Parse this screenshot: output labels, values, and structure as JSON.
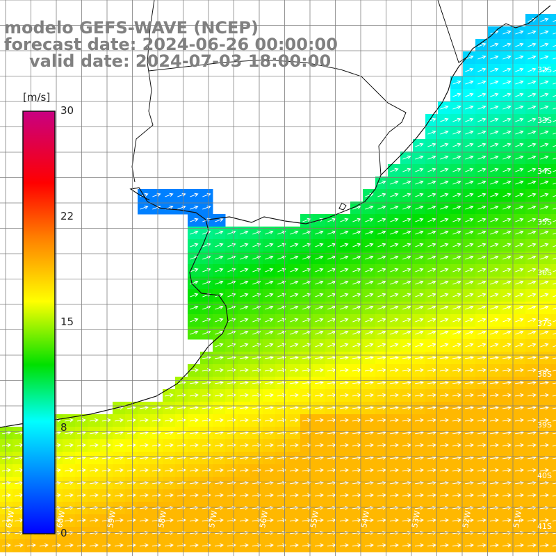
{
  "title": {
    "line1": "modelo GEFS-WAVE (NCEP)",
    "line2": "forecast date: 2024-06-26 00:00:00",
    "line3": "valid date: 2024-07-03 18:00:00"
  },
  "colorbar": {
    "unit": "[m/s]",
    "ticks": [
      "30",
      "22",
      "15",
      "8",
      "0"
    ],
    "stops": [
      "#0000ff",
      "#00ffff",
      "#00ff00",
      "#ffff00",
      "#ff8000",
      "#ff0000",
      "#c80082"
    ]
  },
  "lat_labels": [
    "32S",
    "33S",
    "34S",
    "35S",
    "36S",
    "37S",
    "38S",
    "39S",
    "40S",
    "41S"
  ],
  "lon_labels": [
    "61W",
    "60W",
    "59W",
    "58W",
    "57W",
    "56W",
    "55W",
    "54W",
    "53W",
    "52W",
    "51W"
  ],
  "colors": {
    "land": "#ffffff",
    "coast": "#111111",
    "grid": "#7f7f7f",
    "arrow": "#ffffff",
    "title": "#808080"
  },
  "icons": {
    "wind-vector": "white arrow"
  }
}
